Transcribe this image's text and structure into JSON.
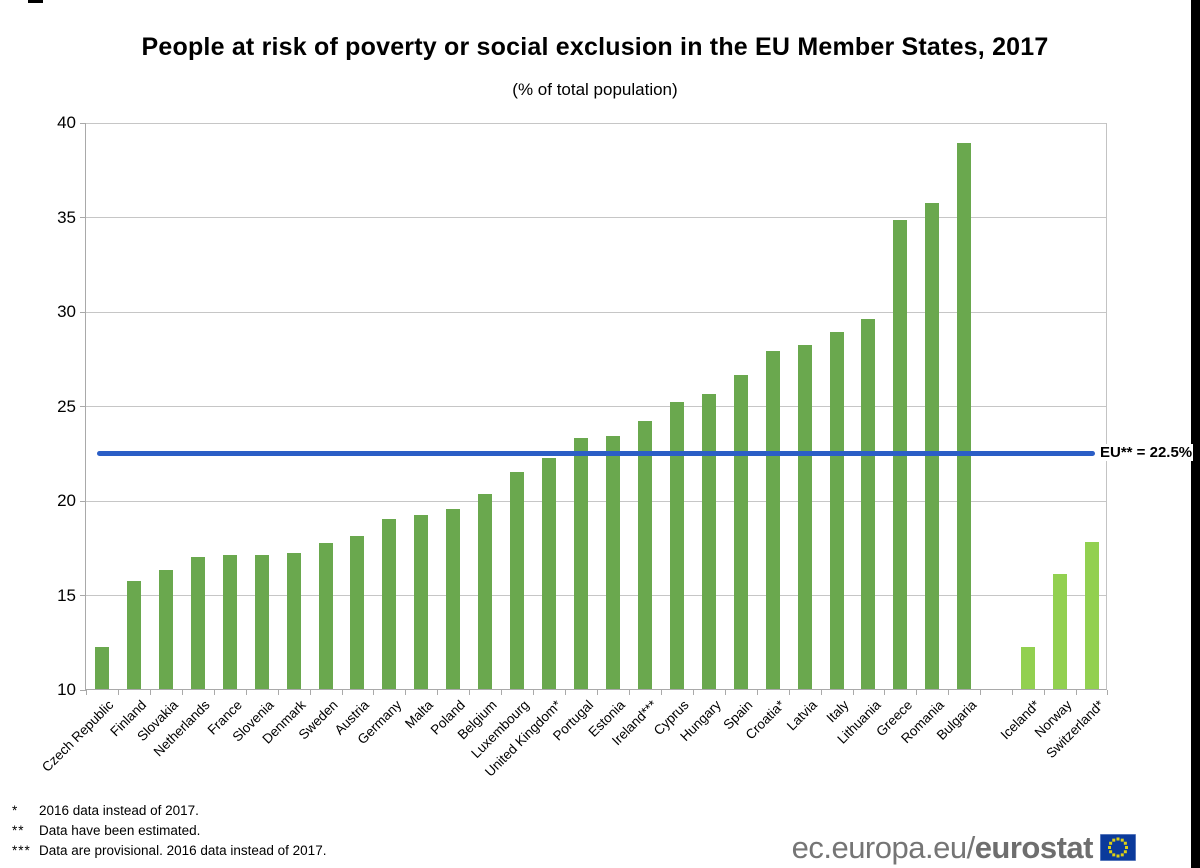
{
  "title": "People at risk of poverty or social exclusion in the EU Member States, 2017",
  "subtitle": "(% of total population)",
  "chart_data": {
    "type": "bar",
    "title": "People at risk of poverty or social exclusion in the EU Member States, 2017",
    "subtitle": "(% of total population)",
    "categories": [
      "Czech Republic",
      "Finland",
      "Slovakia",
      "Netherlands",
      "France",
      "Slovenia",
      "Denmark",
      "Sweden",
      "Austria",
      "Germany",
      "Malta",
      "Poland",
      "Belgium",
      "Luxembourg",
      "United Kingdom*",
      "Portugal",
      "Estonia",
      "Ireland***",
      "Cyprus",
      "Hungary",
      "Spain",
      "Croatia*",
      "Latvia",
      "Italy",
      "Lithuania",
      "Greece",
      "Romania",
      "Bulgaria",
      "Iceland*",
      "Norway",
      "Switzerland*"
    ],
    "values": [
      12.2,
      15.7,
      16.3,
      17.0,
      17.1,
      17.1,
      17.2,
      17.7,
      18.1,
      19.0,
      19.2,
      19.5,
      20.3,
      21.5,
      22.2,
      23.3,
      23.4,
      24.2,
      25.2,
      25.6,
      26.6,
      27.9,
      28.2,
      28.9,
      29.6,
      34.8,
      35.7,
      38.9,
      12.2,
      16.1,
      17.8
    ],
    "ylim": [
      10,
      40
    ],
    "yticks": [
      10,
      15,
      20,
      25,
      30,
      35,
      40
    ],
    "grid": "horizontal",
    "gap_before_index": 28,
    "light_from_index": 28,
    "bar_color": "#6aa84e",
    "bar_color_light": "#92d050",
    "eu_line": {
      "label": "EU** = 22.5%",
      "value": 22.5,
      "color": "#2b5ec6"
    }
  },
  "footnotes": [
    {
      "marker": "*",
      "text": "2016 data instead of 2017."
    },
    {
      "marker": "**",
      "text": "Data have been estimated."
    },
    {
      "marker": "***",
      "text": "Data are provisional. 2016 data instead of 2017."
    }
  ],
  "branding": {
    "url_regular": "ec.europa.eu/",
    "url_bold": "eurostat"
  }
}
